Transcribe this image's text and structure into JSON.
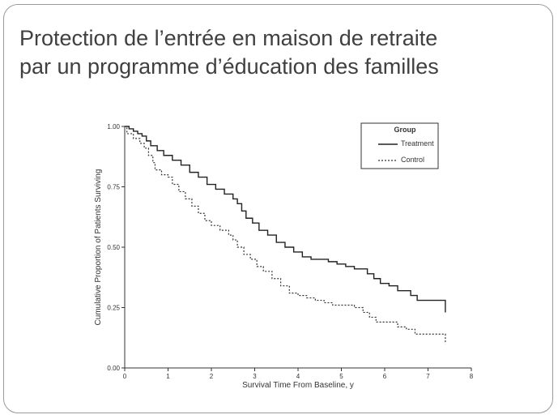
{
  "slide": {
    "title_line1": "Protection de l’entrée en maison de retraite",
    "title_line2": "par un programme d’éducation des familles"
  },
  "chart_data": {
    "type": "line",
    "step": true,
    "xlabel": "Survival Time From Baseline, y",
    "ylabel": "Cumulative Proportion of Patients Surviving",
    "xlim": [
      0,
      8
    ],
    "ylim": [
      0,
      1
    ],
    "xticks": [
      "0",
      "1",
      "2",
      "3",
      "4",
      "5",
      "6",
      "7",
      "8"
    ],
    "yticks": [
      "0.00",
      "0.25",
      "0.50",
      "0.75",
      "1.00"
    ],
    "grid": false,
    "legend": {
      "title": "Group",
      "placement": "top-right"
    },
    "series": [
      {
        "name": "Treatment",
        "style": "solid",
        "color": "#222222",
        "points": [
          [
            0,
            1.0
          ],
          [
            0.1,
            0.99
          ],
          [
            0.2,
            0.98
          ],
          [
            0.3,
            0.97
          ],
          [
            0.4,
            0.96
          ],
          [
            0.5,
            0.94
          ],
          [
            0.6,
            0.92
          ],
          [
            0.75,
            0.9
          ],
          [
            0.9,
            0.88
          ],
          [
            1.0,
            0.88
          ],
          [
            1.1,
            0.86
          ],
          [
            1.3,
            0.84
          ],
          [
            1.5,
            0.81
          ],
          [
            1.7,
            0.79
          ],
          [
            1.9,
            0.76
          ],
          [
            2.1,
            0.74
          ],
          [
            2.3,
            0.72
          ],
          [
            2.5,
            0.7
          ],
          [
            2.6,
            0.68
          ],
          [
            2.7,
            0.65
          ],
          [
            2.8,
            0.62
          ],
          [
            2.95,
            0.6
          ],
          [
            3.1,
            0.57
          ],
          [
            3.3,
            0.55
          ],
          [
            3.5,
            0.52
          ],
          [
            3.7,
            0.5
          ],
          [
            3.9,
            0.48
          ],
          [
            4.1,
            0.46
          ],
          [
            4.3,
            0.45
          ],
          [
            4.5,
            0.45
          ],
          [
            4.7,
            0.44
          ],
          [
            4.9,
            0.43
          ],
          [
            5.1,
            0.42
          ],
          [
            5.3,
            0.41
          ],
          [
            5.5,
            0.41
          ],
          [
            5.6,
            0.39
          ],
          [
            5.75,
            0.37
          ],
          [
            5.9,
            0.35
          ],
          [
            6.1,
            0.34
          ],
          [
            6.3,
            0.32
          ],
          [
            6.5,
            0.32
          ],
          [
            6.6,
            0.3
          ],
          [
            6.75,
            0.28
          ],
          [
            7.2,
            0.28
          ],
          [
            7.35,
            0.28
          ],
          [
            7.4,
            0.23
          ]
        ]
      },
      {
        "name": "Control",
        "style": "dashed",
        "color": "#333333",
        "points": [
          [
            0,
            1.0
          ],
          [
            0.05,
            0.97
          ],
          [
            0.2,
            0.95
          ],
          [
            0.35,
            0.93
          ],
          [
            0.45,
            0.91
          ],
          [
            0.55,
            0.88
          ],
          [
            0.65,
            0.85
          ],
          [
            0.7,
            0.82
          ],
          [
            0.75,
            0.82
          ],
          [
            0.85,
            0.8
          ],
          [
            1.0,
            0.79
          ],
          [
            1.1,
            0.76
          ],
          [
            1.25,
            0.73
          ],
          [
            1.4,
            0.7
          ],
          [
            1.55,
            0.67
          ],
          [
            1.7,
            0.64
          ],
          [
            1.85,
            0.61
          ],
          [
            2.0,
            0.59
          ],
          [
            2.2,
            0.57
          ],
          [
            2.4,
            0.55
          ],
          [
            2.5,
            0.53
          ],
          [
            2.6,
            0.5
          ],
          [
            2.75,
            0.47
          ],
          [
            2.9,
            0.45
          ],
          [
            3.05,
            0.42
          ],
          [
            3.2,
            0.4
          ],
          [
            3.4,
            0.37
          ],
          [
            3.6,
            0.34
          ],
          [
            3.8,
            0.31
          ],
          [
            4.0,
            0.3
          ],
          [
            4.2,
            0.29
          ],
          [
            4.4,
            0.28
          ],
          [
            4.6,
            0.27
          ],
          [
            4.8,
            0.26
          ],
          [
            5.0,
            0.26
          ],
          [
            5.3,
            0.25
          ],
          [
            5.5,
            0.23
          ],
          [
            5.65,
            0.21
          ],
          [
            5.8,
            0.19
          ],
          [
            6.0,
            0.19
          ],
          [
            6.3,
            0.17
          ],
          [
            6.5,
            0.16
          ],
          [
            6.7,
            0.14
          ],
          [
            7.2,
            0.14
          ],
          [
            7.35,
            0.14
          ],
          [
            7.4,
            0.1
          ]
        ]
      }
    ]
  }
}
